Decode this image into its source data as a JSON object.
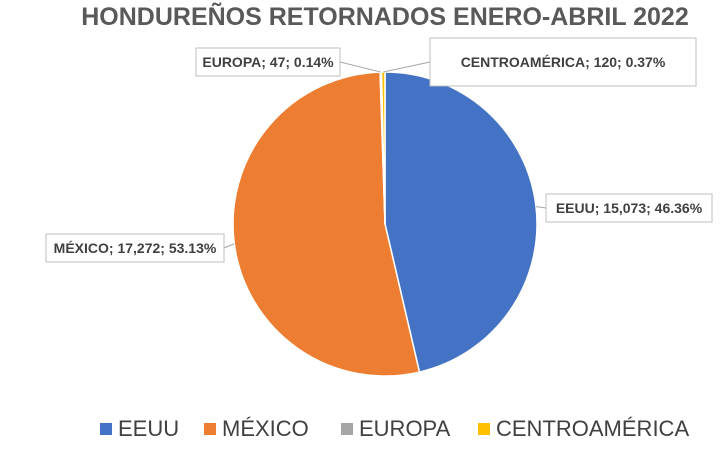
{
  "chart_data": {
    "type": "pie",
    "title": "HONDUREÑOS RETORNADOS ENERO-ABRIL 2022",
    "legend_position": "bottom",
    "slices": [
      {
        "name": "EEUU",
        "value": 15073,
        "percent": "46.36%",
        "label": "EEUU; 15,073; 46.36%",
        "color": "#4472C4"
      },
      {
        "name": "MÉXICO",
        "value": 17272,
        "percent": "53.13%",
        "label": "MÉXICO; 17,272; 53.13%",
        "color": "#ED7D31"
      },
      {
        "name": "EUROPA",
        "value": 47,
        "percent": "0.14%",
        "label": "EUROPA; 47; 0.14%",
        "color": "#A5A5A5"
      },
      {
        "name": "CENTROAMÉRICA",
        "value": 120,
        "percent": "0.37%",
        "label": "CENTROAMÉRICA; 120; 0.37%",
        "color": "#FFC000"
      }
    ]
  }
}
